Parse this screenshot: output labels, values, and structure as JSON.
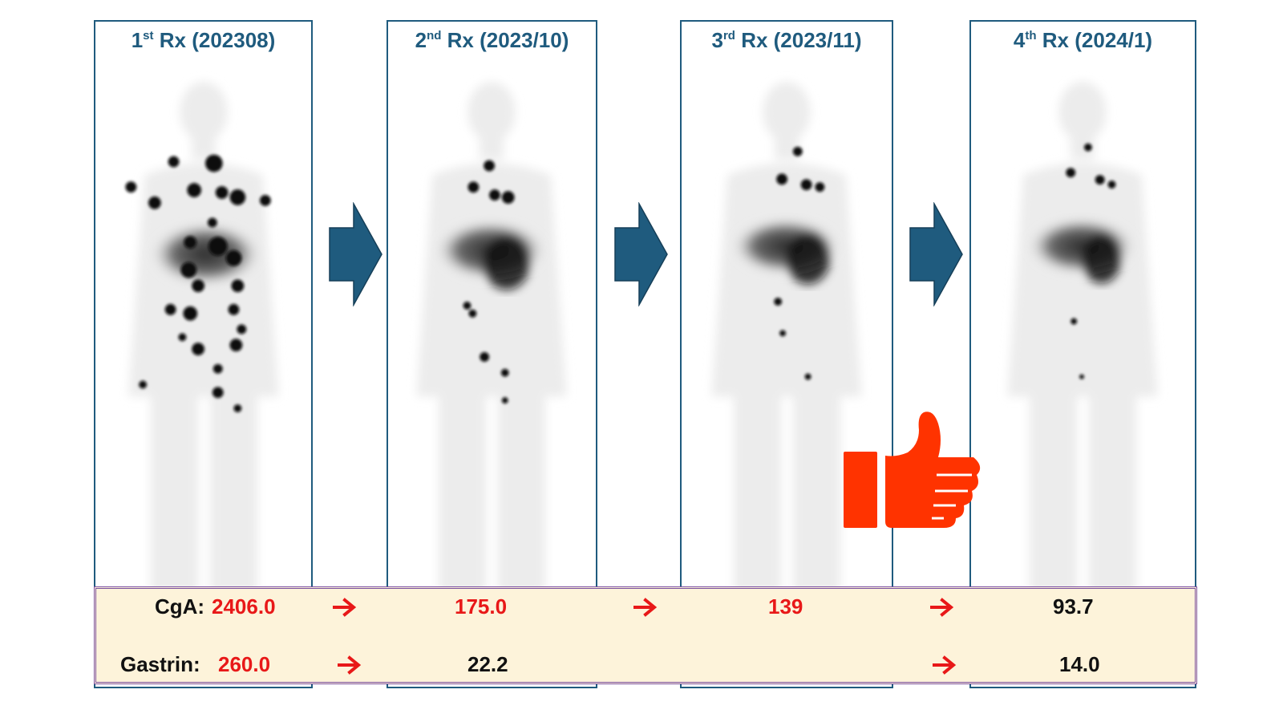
{
  "panels": [
    {
      "num": "1",
      "sup": "st",
      "label": "Rx (202308)"
    },
    {
      "num": "2",
      "sup": "nd",
      "label": "Rx (2023/10)"
    },
    {
      "num": "3",
      "sup": "rd",
      "label": "Rx (2023/11)"
    },
    {
      "num": "4",
      "sup": "th",
      "label": "Rx (2024/1)"
    }
  ],
  "labs": {
    "cga": {
      "label": "CgA:",
      "values": [
        "2406.0",
        "175.0",
        "139",
        "93.7"
      ]
    },
    "gastrin": {
      "label": "Gastrin:",
      "values": [
        "260.0",
        "22.2",
        "14.0"
      ]
    }
  },
  "colors": {
    "panel_border": "#1f5b7e",
    "arrow_fill": "#1f5b7e",
    "lab_background": "#fdf3da",
    "lab_border": "#7b4fa0",
    "highlight_value": "#e81818",
    "thumb": "#ff3300"
  },
  "icons": {
    "big_arrow": "right-block-arrow",
    "small_arrow": "right-arrow",
    "thumb": "thumbs-up"
  }
}
